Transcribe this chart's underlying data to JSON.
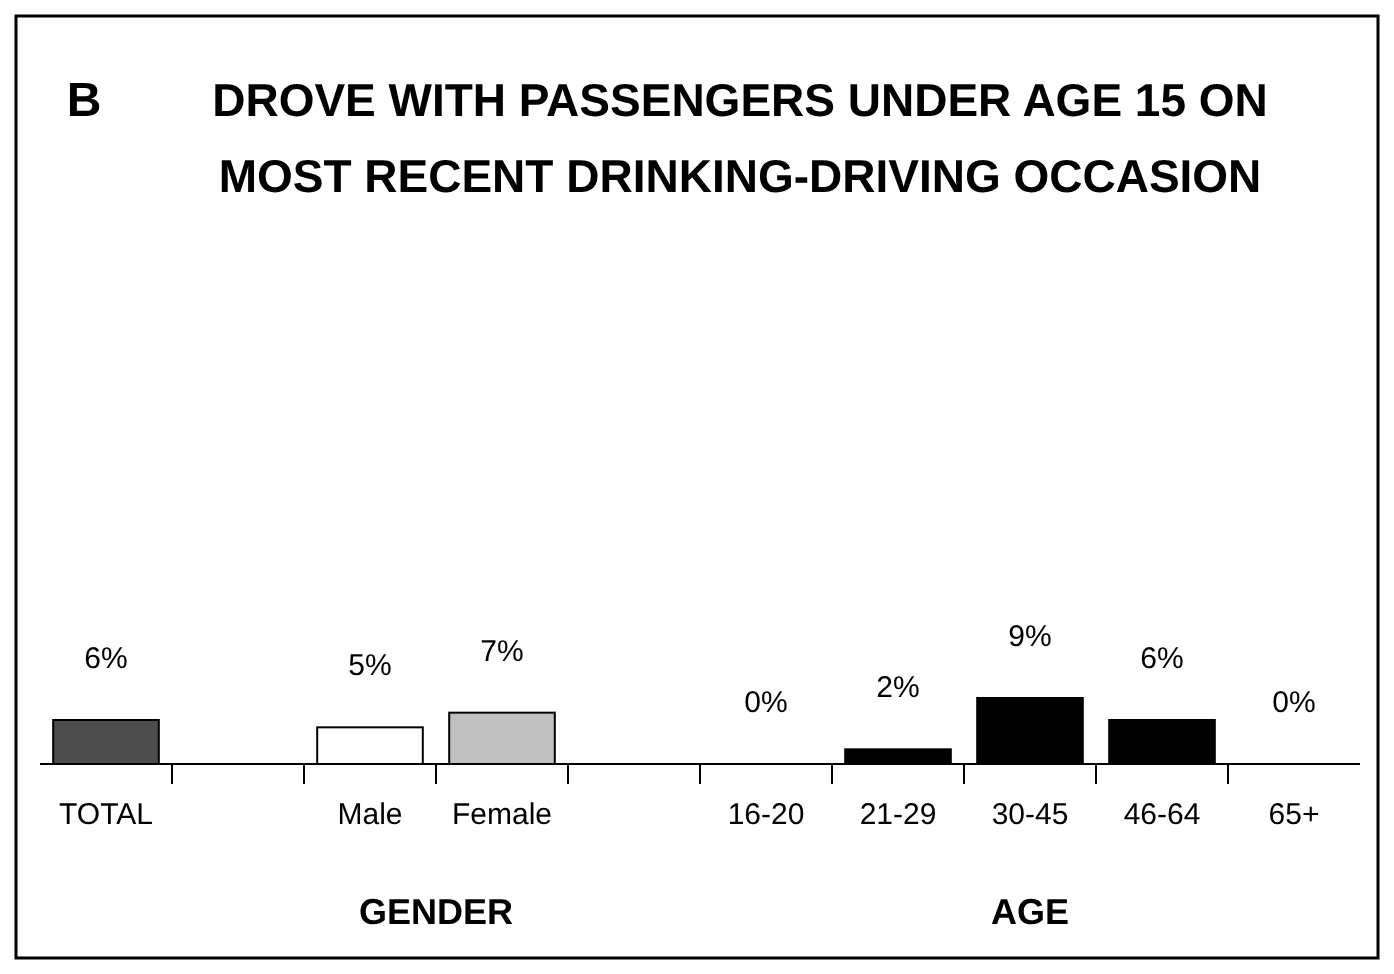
{
  "chart_data": {
    "type": "bar",
    "title": "DROVE WITH PASSENGERS UNDER AGE 15 ON\nMOST RECENT DRINKING-DRIVING OCCASION",
    "categories": [
      "TOTAL",
      null,
      "Male",
      "Female",
      null,
      "16-20",
      "21-29",
      "30-45",
      "46-64",
      "65+"
    ],
    "values": [
      6,
      null,
      5,
      7,
      null,
      0,
      2,
      9,
      6,
      0
    ],
    "colors": [
      "#4d4d4d",
      null,
      "#ffffff",
      "#c0c0c0",
      null,
      "#000000",
      "#000000",
      "#000000",
      "#000000",
      "#000000"
    ],
    "value_labels": [
      "6%",
      null,
      "5%",
      "7%",
      null,
      "0%",
      "2%",
      "9%",
      "6%",
      "0%"
    ],
    "annotations": [
      "B",
      "GENDER",
      "AGE"
    ]
  }
}
